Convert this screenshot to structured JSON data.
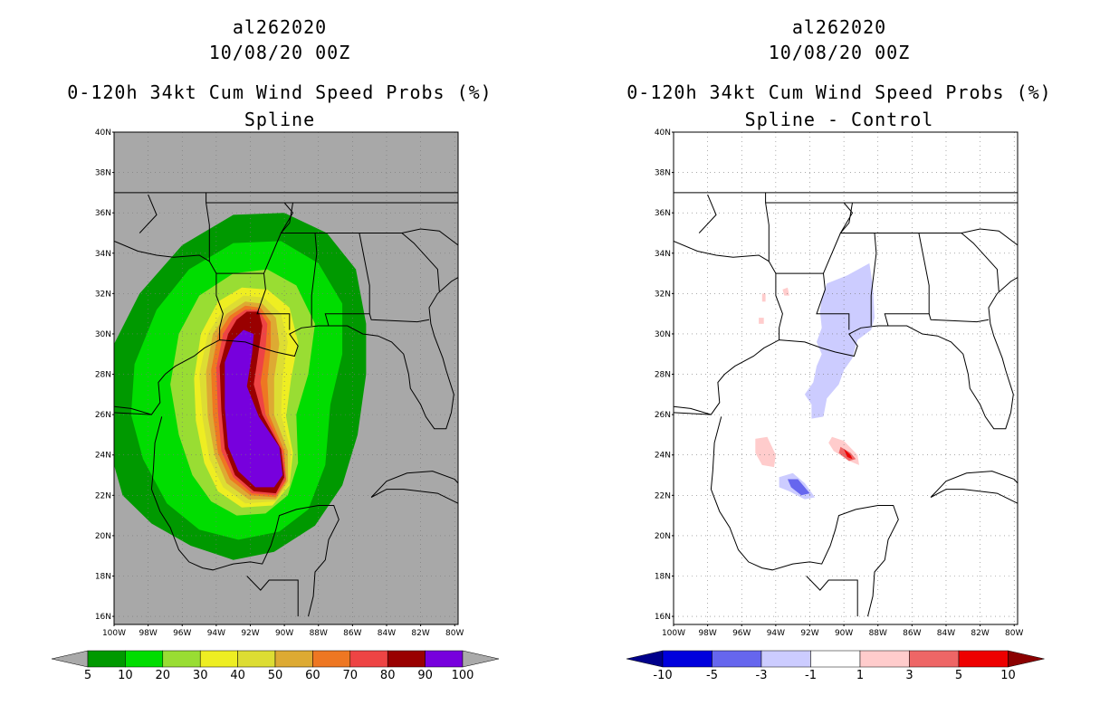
{
  "storm_id": "al262020",
  "datetime": "10/08/20 00Z",
  "product": "0-120h 34kt Cum Wind Speed Probs (%)",
  "panels": [
    {
      "subtitle": "Spline",
      "background": "#a8a8a8",
      "colorbar": {
        "colors": [
          "#009900",
          "#00dd00",
          "#99dd33",
          "#eeee22",
          "#dddd33",
          "#ddaa33",
          "#ee7722",
          "#ee4444",
          "#990000",
          "#7700dd"
        ],
        "labels": [
          "5",
          "10",
          "20",
          "30",
          "40",
          "50",
          "60",
          "70",
          "80",
          "90",
          "100"
        ],
        "under_color": "#aaaaaa",
        "over_color": "#aaaaaa"
      }
    },
    {
      "subtitle": "Spline - Control",
      "background": "#ffffff",
      "colorbar": {
        "colors": [
          "#0000dd",
          "#6666ee",
          "#ccccff",
          "#ffffff",
          "#ffcccc",
          "#ee6666",
          "#ee0000"
        ],
        "labels": [
          "-10",
          "-5",
          "-3",
          "-1",
          "1",
          "3",
          "5",
          "10"
        ],
        "under_color": "#00008b",
        "over_color": "#8b0000"
      }
    }
  ],
  "lat_labels": [
    "40N",
    "38N",
    "36N",
    "34N",
    "32N",
    "30N",
    "28N",
    "26N",
    "24N",
    "22N",
    "20N",
    "18N",
    "16N"
  ],
  "lon_labels": [
    "100W",
    "98W",
    "96W",
    "94W",
    "92W",
    "90W",
    "88W",
    "86W",
    "84W",
    "82W",
    "80W"
  ],
  "lat_values": [
    40,
    38,
    36,
    34,
    32,
    30,
    28,
    26,
    24,
    22,
    20,
    18,
    16
  ],
  "lon_values": [
    -100,
    -98,
    -96,
    -94,
    -92,
    -90,
    -88,
    -86,
    -84,
    -82,
    -80
  ]
}
